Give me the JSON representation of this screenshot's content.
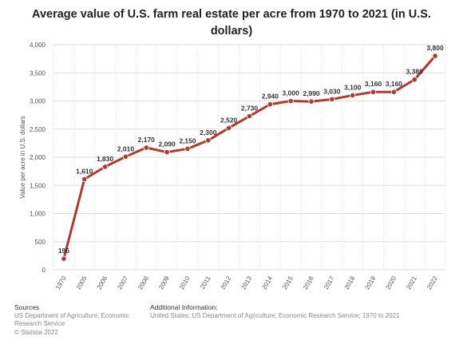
{
  "title": "Average value of U.S. farm real estate per acre from 1970 to 2021 (in U.S. dollars)",
  "footer": {
    "sources_heading": "Sources",
    "sources_line1": "US Department of Agriculture; Economic",
    "sources_line2": "Research Service",
    "copyright": "© Statista 2022",
    "additional_heading": "Additional Information:",
    "additional_text": "United States; US Department of Agriculture; Economic Research Service; 1970 to 2021"
  },
  "chart_data": {
    "type": "line",
    "title": "Average value of U.S. farm real estate per acre from 1970 to 2021 (in U.S. dollars)",
    "xlabel": "",
    "ylabel": "Value per acre in U.S. dollars",
    "categories": [
      "1970",
      "2005",
      "2006",
      "2007",
      "2008",
      "2009",
      "2010",
      "2011",
      "2012",
      "2013",
      "2014",
      "2015",
      "2016",
      "2017",
      "2018",
      "2019",
      "2020",
      "2021",
      "2022"
    ],
    "series": [
      {
        "values": [
          196,
          1610,
          1830,
          2010,
          2170,
          2090,
          2150,
          2300,
          2520,
          2730,
          2940,
          3000,
          2990,
          3030,
          3100,
          3160,
          3160,
          3380,
          3800
        ],
        "labels": [
          "196",
          "1,610",
          "1,830",
          "2,010",
          "2,170",
          "2,090",
          "2,150",
          "2,300",
          "2,520",
          "2,730",
          "2,940",
          "3,000",
          "2,990",
          "3,030",
          "3,100",
          "3,160",
          "3,160",
          "3,380",
          "3,800"
        ]
      }
    ],
    "yticks": [
      0,
      500,
      1000,
      1500,
      2000,
      2500,
      3000,
      3500,
      4000
    ],
    "ytick_labels": [
      "0",
      "500",
      "1,000",
      "1,500",
      "2,000",
      "2,500",
      "3,000",
      "3,500",
      "4,000"
    ],
    "ylim": [
      0,
      4000
    ],
    "grid": "horizontal and vertical",
    "colors": {
      "line": "#b03a2e",
      "grid": "#dddddd",
      "text": "#333333"
    }
  }
}
